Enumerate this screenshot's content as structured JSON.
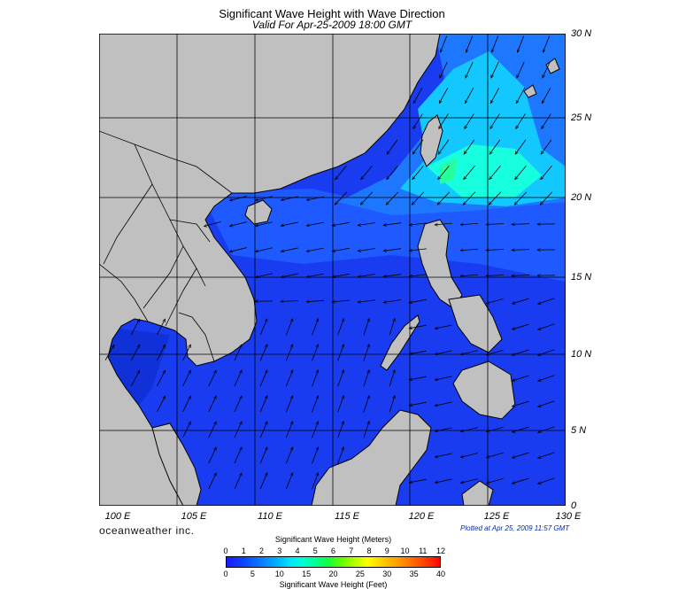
{
  "title": "Significant Wave Height with Wave Direction",
  "subtitle": "Valid For Apr-25-2009 18:00 GMT",
  "lat_labels": [
    "30 N",
    "25 N",
    "20 N",
    "15 N",
    "10 N",
    "5 N",
    "0"
  ],
  "lon_labels": [
    "100 E",
    "105 E",
    "110 E",
    "115 E",
    "120 E",
    "125 E",
    "130 E"
  ],
  "brand": "oceanweather inc.",
  "plotted": "Plotted at Apr 25, 2009 11:57 GMT",
  "legend": {
    "meters_title": "Significant Wave Height (Meters)",
    "feet_title": "Significant Wave Height (Feet)",
    "meters_ticks": [
      "0",
      "1",
      "2",
      "3",
      "4",
      "5",
      "6",
      "7",
      "8",
      "9",
      "10",
      "11",
      "12"
    ],
    "feet_ticks": [
      "0",
      "5",
      "10",
      "15",
      "20",
      "25",
      "30",
      "35",
      "40"
    ]
  },
  "colors": {
    "land": "#c0c0c0",
    "low_wave": "#1a1aff",
    "mid_wave": "#00ffd0",
    "high_wave": "#ff0000"
  }
}
